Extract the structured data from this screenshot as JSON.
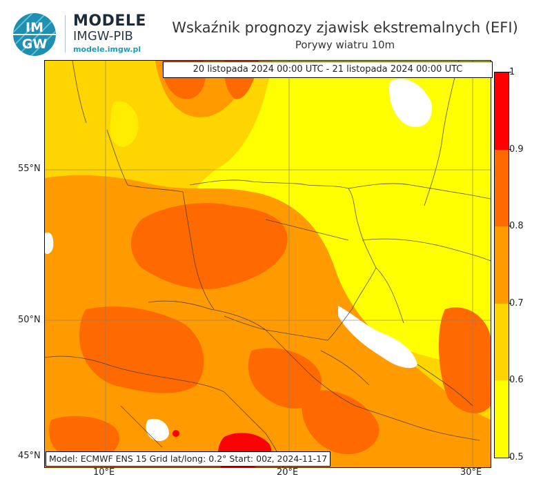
{
  "logo": {
    "brand": "MODELE",
    "org": "IMGW-PIB",
    "url": "modele.imgw.pl",
    "badge_top": "IM",
    "badge_bottom": "GW"
  },
  "header": {
    "title": "Wskaźnik prognozy zjawisk ekstremalnych (EFI)",
    "subtitle": "Porywy wiatru 10m"
  },
  "map": {
    "period": "20 listopada 2024 00:00 UTC - 21 listopada 2024 00:00 UTC",
    "model_info": "Model: ECMWF  ENS 15  Grid lat/long: 0.2°  Start: 00z, 2024-11-17",
    "lat_labels": [
      "55°N",
      "50°N",
      "45°N"
    ],
    "lon_labels": [
      "10°E",
      "20°E",
      "30°E"
    ]
  },
  "colorbar": {
    "ticks": [
      "1",
      "0.9",
      "0.8",
      "0.7",
      "0.6",
      "0.5"
    ],
    "colors": [
      "#ff0000",
      "#ff6a00",
      "#ff9a00",
      "#ffd500",
      "#ffff00"
    ]
  }
}
